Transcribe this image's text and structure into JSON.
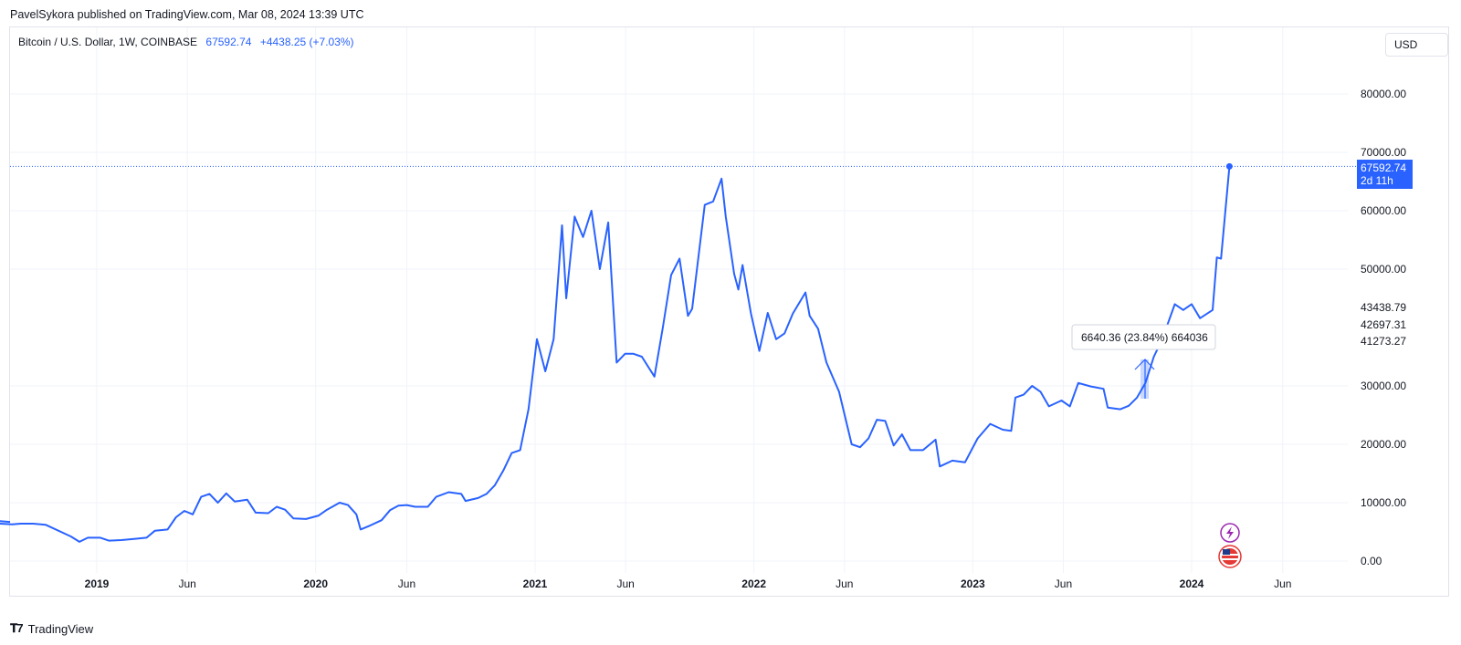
{
  "header": {
    "published": "PavelSykora published on TradingView.com, Mar 08, 2024 13:39 UTC"
  },
  "legend": {
    "symbol": "Bitcoin / U.S. Dollar, 1W, COINBASE",
    "last": "67592.74",
    "change": "+4438.25 (+7.03%)"
  },
  "currency": "USD",
  "price_tag": {
    "price": "67592.74",
    "countdown": "2d 11h"
  },
  "measure_label": "6640.36 (23.84%) 664036",
  "footer": {
    "brand": "TradingView"
  },
  "colors": {
    "line": "#2962ff",
    "grid": "#f0f3fa",
    "text": "#131722"
  },
  "icons": [
    "lightning-event-icon",
    "us-flag-event-icon"
  ],
  "chart_data": {
    "type": "line",
    "title": "Bitcoin / U.S. Dollar, 1W, COINBASE",
    "x_ticks": [
      "2019",
      "Jun",
      "2020",
      "Jun",
      "2021",
      "Jun",
      "2022",
      "Jun",
      "2023",
      "Jun",
      "2024",
      "Jun"
    ],
    "y_ticks": [
      "0.00",
      "10000.00",
      "20000.00",
      "30000.00",
      "50000.00",
      "60000.00",
      "70000.00",
      "80000.00"
    ],
    "extra_price_labels": [
      "43438.79",
      "42697.31",
      "41273.27"
    ],
    "y_range": [
      0,
      80000
    ],
    "last_value": 67592.74,
    "series": [
      {
        "points": [
          [
            "2018-05-01",
            6700
          ],
          [
            "2018-05-21",
            7300
          ],
          [
            "2018-06-11",
            6200
          ],
          [
            "2018-07-02",
            6600
          ],
          [
            "2018-07-23",
            6400
          ],
          [
            "2018-08-13",
            6300
          ],
          [
            "2018-08-27",
            6400
          ],
          [
            "2018-09-17",
            6400
          ],
          [
            "2018-10-08",
            6200
          ],
          [
            "2018-11-19",
            4200
          ],
          [
            "2018-12-03",
            3300
          ],
          [
            "2018-12-17",
            4000
          ],
          [
            "2019-01-07",
            4000
          ],
          [
            "2019-01-21",
            3500
          ],
          [
            "2019-02-11",
            3600
          ],
          [
            "2019-03-04",
            3800
          ],
          [
            "2019-03-25",
            4000
          ],
          [
            "2019-04-08",
            5200
          ],
          [
            "2019-04-29",
            5400
          ],
          [
            "2019-05-13",
            7500
          ],
          [
            "2019-05-27",
            8600
          ],
          [
            "2019-06-10",
            8000
          ],
          [
            "2019-06-24",
            11000
          ],
          [
            "2019-07-08",
            11500
          ],
          [
            "2019-07-22",
            10000
          ],
          [
            "2019-08-05",
            11600
          ],
          [
            "2019-08-19",
            10200
          ],
          [
            "2019-09-09",
            10500
          ],
          [
            "2019-09-23",
            8300
          ],
          [
            "2019-10-14",
            8200
          ],
          [
            "2019-10-28",
            9300
          ],
          [
            "2019-11-11",
            8800
          ],
          [
            "2019-11-25",
            7300
          ],
          [
            "2019-12-16",
            7200
          ],
          [
            "2020-01-06",
            7800
          ],
          [
            "2020-01-20",
            8800
          ],
          [
            "2020-02-10",
            10000
          ],
          [
            "2020-02-24",
            9600
          ],
          [
            "2020-03-09",
            8000
          ],
          [
            "2020-03-16",
            5400
          ],
          [
            "2020-03-30",
            6000
          ],
          [
            "2020-04-20",
            7000
          ],
          [
            "2020-05-04",
            8700
          ],
          [
            "2020-05-18",
            9500
          ],
          [
            "2020-06-01",
            9600
          ],
          [
            "2020-06-15",
            9300
          ],
          [
            "2020-07-06",
            9300
          ],
          [
            "2020-07-20",
            11000
          ],
          [
            "2020-08-10",
            11800
          ],
          [
            "2020-08-31",
            11500
          ],
          [
            "2020-09-07",
            10300
          ],
          [
            "2020-09-28",
            10800
          ],
          [
            "2020-10-12",
            11500
          ],
          [
            "2020-10-26",
            13000
          ],
          [
            "2020-11-09",
            15500
          ],
          [
            "2020-11-23",
            18500
          ],
          [
            "2020-12-07",
            19000
          ],
          [
            "2020-12-21",
            26000
          ],
          [
            "2021-01-04",
            38000
          ],
          [
            "2021-01-18",
            32500
          ],
          [
            "2021-02-01",
            38000
          ],
          [
            "2021-02-15",
            57500
          ],
          [
            "2021-02-22",
            45000
          ],
          [
            "2021-03-08",
            59000
          ],
          [
            "2021-03-22",
            55500
          ],
          [
            "2021-04-05",
            60000
          ],
          [
            "2021-04-19",
            50000
          ],
          [
            "2021-05-03",
            58000
          ],
          [
            "2021-05-17",
            34000
          ],
          [
            "2021-05-31",
            35500
          ],
          [
            "2021-06-14",
            35500
          ],
          [
            "2021-06-28",
            35000
          ],
          [
            "2021-07-19",
            31600
          ],
          [
            "2021-08-02",
            40000
          ],
          [
            "2021-08-16",
            49000
          ],
          [
            "2021-08-30",
            51800
          ],
          [
            "2021-09-13",
            42000
          ],
          [
            "2021-09-20",
            43200
          ],
          [
            "2021-10-11",
            61000
          ],
          [
            "2021-10-25",
            61600
          ],
          [
            "2021-11-08",
            65500
          ],
          [
            "2021-11-15",
            59000
          ],
          [
            "2021-11-29",
            49200
          ],
          [
            "2021-12-06",
            46500
          ],
          [
            "2021-12-13",
            50700
          ],
          [
            "2021-12-27",
            42400
          ],
          [
            "2022-01-10",
            36000
          ],
          [
            "2022-01-24",
            42500
          ],
          [
            "2022-02-07",
            38000
          ],
          [
            "2022-02-21",
            39000
          ],
          [
            "2022-03-07",
            42400
          ],
          [
            "2022-03-28",
            46000
          ],
          [
            "2022-04-04",
            42000
          ],
          [
            "2022-04-18",
            39800
          ],
          [
            "2022-05-02",
            34000
          ],
          [
            "2022-05-23",
            29000
          ],
          [
            "2022-06-13",
            20000
          ],
          [
            "2022-06-27",
            19500
          ],
          [
            "2022-07-11",
            21000
          ],
          [
            "2022-07-25",
            24200
          ],
          [
            "2022-08-08",
            24000
          ],
          [
            "2022-08-22",
            19800
          ],
          [
            "2022-09-05",
            21700
          ],
          [
            "2022-09-19",
            19000
          ],
          [
            "2022-10-10",
            19000
          ],
          [
            "2022-10-31",
            20800
          ],
          [
            "2022-11-07",
            16200
          ],
          [
            "2022-11-28",
            17200
          ],
          [
            "2022-12-19",
            16900
          ],
          [
            "2023-01-09",
            21000
          ],
          [
            "2023-01-30",
            23500
          ],
          [
            "2023-02-20",
            22500
          ],
          [
            "2023-03-06",
            22300
          ],
          [
            "2023-03-13",
            28000
          ],
          [
            "2023-03-27",
            28500
          ],
          [
            "2023-04-10",
            30000
          ],
          [
            "2023-04-24",
            29000
          ],
          [
            "2023-05-08",
            26500
          ],
          [
            "2023-05-29",
            27500
          ],
          [
            "2023-06-12",
            26500
          ],
          [
            "2023-06-26",
            30500
          ],
          [
            "2023-07-17",
            29900
          ],
          [
            "2023-08-07",
            29500
          ],
          [
            "2023-08-14",
            26300
          ],
          [
            "2023-09-04",
            26000
          ],
          [
            "2023-09-18",
            26600
          ],
          [
            "2023-10-02",
            28000
          ],
          [
            "2023-10-16",
            30500
          ],
          [
            "2023-10-30",
            35000
          ],
          [
            "2023-11-13",
            38000
          ],
          [
            "2023-12-04",
            44000
          ],
          [
            "2023-12-18",
            43000
          ],
          [
            "2024-01-01",
            44000
          ],
          [
            "2024-01-15",
            41600
          ],
          [
            "2024-02-05",
            43000
          ],
          [
            "2024-02-12",
            52000
          ],
          [
            "2024-02-19",
            51800
          ],
          [
            "2024-03-04",
            67592.74
          ]
        ]
      }
    ]
  }
}
